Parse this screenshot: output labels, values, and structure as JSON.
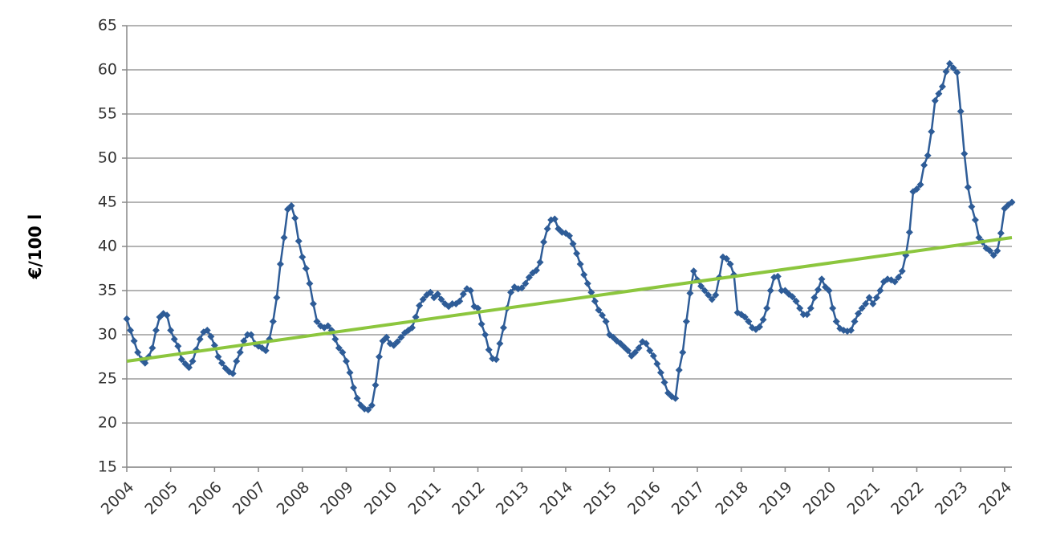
{
  "chart_data": {
    "type": "line",
    "y_label": "€/100 l",
    "categories": [
      "2004",
      null,
      null,
      null,
      null,
      null,
      null,
      null,
      null,
      null,
      null,
      null,
      "2005",
      null,
      null,
      null,
      null,
      null,
      null,
      null,
      null,
      null,
      null,
      null,
      "2006",
      null,
      null,
      null,
      null,
      null,
      null,
      null,
      null,
      null,
      null,
      null,
      "2007",
      null,
      null,
      null,
      null,
      null,
      null,
      null,
      null,
      null,
      null,
      null,
      "2008",
      null,
      null,
      null,
      null,
      null,
      null,
      null,
      null,
      null,
      null,
      null,
      "2009",
      null,
      null,
      null,
      null,
      null,
      null,
      null,
      null,
      null,
      null,
      null,
      "2010",
      null,
      null,
      null,
      null,
      null,
      null,
      null,
      null,
      null,
      null,
      null,
      "2011",
      null,
      null,
      null,
      null,
      null,
      null,
      null,
      null,
      null,
      null,
      null,
      "2012",
      null,
      null,
      null,
      null,
      null,
      null,
      null,
      null,
      null,
      null,
      null,
      "2013",
      null,
      null,
      null,
      null,
      null,
      null,
      null,
      null,
      null,
      null,
      null,
      "2014",
      null,
      null,
      null,
      null,
      null,
      null,
      null,
      null,
      null,
      null,
      null,
      "2015",
      null,
      null,
      null,
      null,
      null,
      null,
      null,
      null,
      null,
      null,
      null,
      "2016",
      null,
      null,
      null,
      null,
      null,
      null,
      null,
      null,
      null,
      null,
      null,
      "2017",
      null,
      null,
      null,
      null,
      null,
      null,
      null,
      null,
      null,
      null,
      null,
      "2018",
      null,
      null,
      null,
      null,
      null,
      null,
      null,
      null,
      null,
      null,
      null,
      "2019",
      null,
      null,
      null,
      null,
      null,
      null,
      null,
      null,
      null,
      null,
      null,
      "2020",
      null,
      null,
      null,
      null,
      null,
      null,
      null,
      null,
      null,
      null,
      null,
      "2021",
      null,
      null,
      null,
      null,
      null,
      null,
      null,
      null,
      null,
      null,
      null,
      "2022",
      null,
      null,
      null,
      null,
      null,
      null,
      null,
      null,
      null,
      null,
      null,
      "2023",
      null,
      null,
      null,
      null,
      null,
      null,
      null,
      null,
      null,
      null,
      null,
      "2024",
      null,
      null
    ],
    "series": [
      {
        "color": "#2e5c97",
        "values": [
          31.8,
          30.5,
          29.3,
          28,
          27.2,
          26.8,
          27.5,
          28.5,
          30.5,
          32,
          32.4,
          32.2,
          30.5,
          29.5,
          28.7,
          27.2,
          26.7,
          26.3,
          27,
          28.3,
          29.5,
          30.3,
          30.5,
          29.8,
          28.8,
          27.5,
          26.8,
          26.2,
          25.8,
          25.6,
          27,
          28,
          29.3,
          30,
          30,
          29,
          28.7,
          28.5,
          28.2,
          29.5,
          31.5,
          34.2,
          38,
          41,
          44.2,
          44.6,
          43.2,
          40.6,
          38.8,
          37.5,
          35.8,
          33.5,
          31.5,
          31,
          30.8,
          31,
          30.5,
          29.5,
          28.5,
          28,
          27,
          25.7,
          24,
          22.8,
          22,
          21.6,
          21.5,
          22,
          24.3,
          27.5,
          29.3,
          29.7,
          29,
          28.8,
          29.2,
          29.7,
          30.2,
          30.5,
          30.8,
          32,
          33.3,
          34,
          34.5,
          34.8,
          34.2,
          34.6,
          34,
          33.5,
          33.2,
          33.5,
          33.5,
          33.8,
          34.6,
          35.2,
          35,
          33.2,
          33,
          31.2,
          30,
          28.3,
          27.3,
          27.2,
          29,
          30.8,
          33,
          34.8,
          35.4,
          35.2,
          35.3,
          35.8,
          36.5,
          37,
          37.3,
          38.2,
          40.5,
          42,
          43,
          43.1,
          42,
          41.6,
          41.5,
          41.2,
          40.3,
          39.2,
          38,
          36.8,
          35.8,
          34.8,
          33.8,
          32.8,
          32.2,
          31.5,
          30,
          29.7,
          29.3,
          29,
          28.6,
          28.2,
          27.6,
          28,
          28.5,
          29.2,
          29,
          28.2,
          27.6,
          26.7,
          25.7,
          24.6,
          23.4,
          23,
          22.8,
          26,
          28,
          31.5,
          34.7,
          37.2,
          36.2,
          35.5,
          35,
          34.5,
          34,
          34.5,
          36.5,
          38.8,
          38.6,
          38,
          36.8,
          32.5,
          32.3,
          32,
          31.5,
          30.8,
          30.6,
          30.9,
          31.7,
          33,
          35,
          36.5,
          36.6,
          35,
          35,
          34.6,
          34.3,
          33.8,
          33,
          32.3,
          32.3,
          33,
          34.2,
          35.1,
          36.3,
          35.4,
          35,
          33,
          31.5,
          30.7,
          30.5,
          30.4,
          30.5,
          31.5,
          32.4,
          33,
          33.5,
          34.2,
          33.5,
          34.2,
          35,
          36,
          36.3,
          36.2,
          36,
          36.5,
          37.2,
          39,
          41.6,
          46.2,
          46.5,
          47,
          49.2,
          50.3,
          53,
          56.5,
          57.3,
          58.1,
          59.8,
          60.7,
          60.2,
          59.7,
          55.3,
          50.5,
          46.7,
          44.5,
          43,
          41,
          40.5,
          39.8,
          39.5,
          39,
          39.5,
          41.5,
          44.3,
          44.7,
          45
        ]
      }
    ],
    "trend": {
      "color": "#8cc63e",
      "values": [
        27,
        41
      ]
    },
    "ylim": [
      15,
      65
    ],
    "yticks": [
      15,
      20,
      25,
      30,
      35,
      40,
      45,
      50,
      55,
      60,
      65
    ],
    "grid": true
  }
}
